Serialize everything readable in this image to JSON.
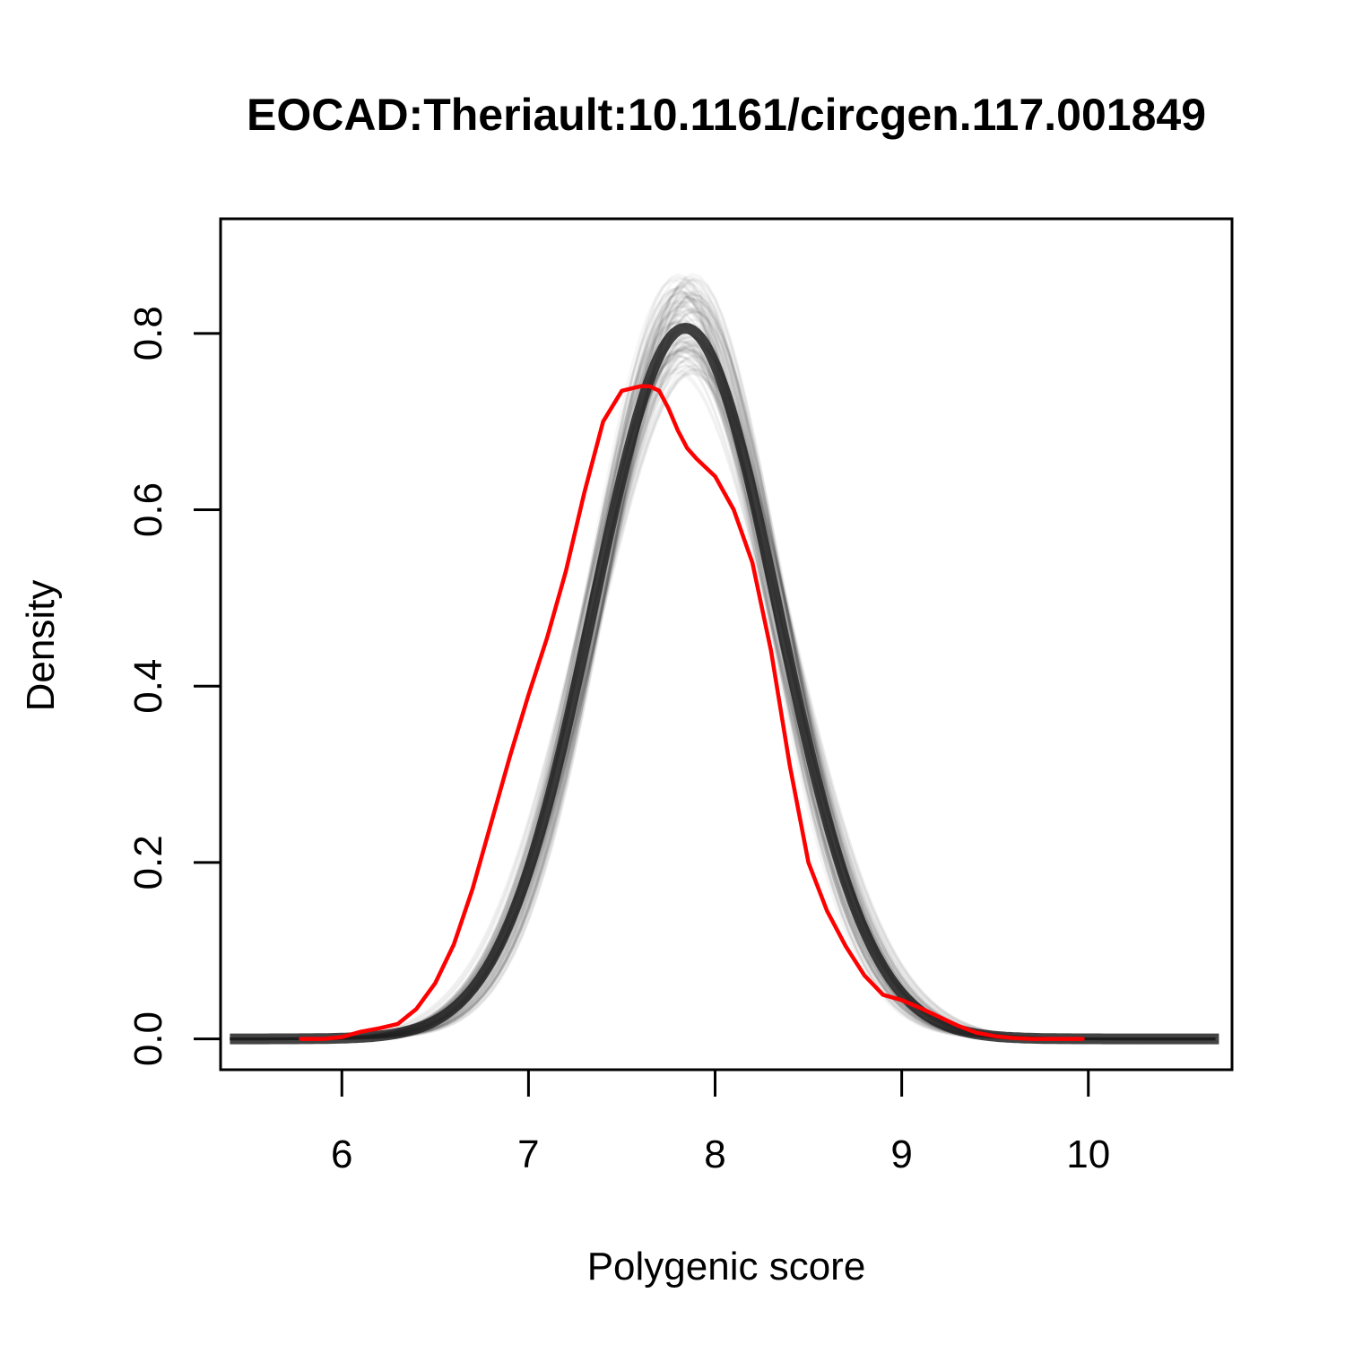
{
  "chart_data": {
    "type": "line",
    "title": "EOCAD:Theriault:10.1161/circgen.117.001849",
    "xlabel": "Polygenic score",
    "ylabel": "Density",
    "xlim": [
      5.35,
      10.77
    ],
    "ylim": [
      -0.035,
      0.93
    ],
    "xticks": [
      6,
      7,
      8,
      9,
      10
    ],
    "yticks": [
      0.0,
      0.2,
      0.4,
      0.6,
      0.8
    ],
    "xtick_labels": [
      "6",
      "7",
      "8",
      "9",
      "10"
    ],
    "ytick_labels": [
      "0.0",
      "0.2",
      "0.4",
      "0.6",
      "0.8"
    ],
    "grid": false,
    "legend": "none",
    "simulated_band": {
      "color": "#000000",
      "description_hidden": true,
      "center_mean": 7.84,
      "center_sd": 0.495,
      "mean_range": [
        7.78,
        7.9
      ],
      "sd_range": [
        0.46,
        0.53
      ],
      "x_range": [
        5.4,
        10.7
      ],
      "count": 120
    },
    "series": [
      {
        "color": "#ff0000",
        "x": [
          5.78,
          5.9,
          6.0,
          6.1,
          6.2,
          6.3,
          6.4,
          6.5,
          6.6,
          6.7,
          6.8,
          6.9,
          7.0,
          7.1,
          7.2,
          7.3,
          7.4,
          7.5,
          7.6,
          7.65,
          7.7,
          7.75,
          7.8,
          7.85,
          7.9,
          8.0,
          8.1,
          8.2,
          8.3,
          8.4,
          8.5,
          8.6,
          8.7,
          8.8,
          8.9,
          9.0,
          9.1,
          9.2,
          9.3,
          9.4,
          9.5,
          9.6,
          9.7,
          9.8,
          9.97
        ],
        "y": [
          0.0,
          0.0,
          0.002,
          0.008,
          0.012,
          0.017,
          0.034,
          0.063,
          0.107,
          0.17,
          0.245,
          0.32,
          0.39,
          0.455,
          0.53,
          0.62,
          0.7,
          0.735,
          0.74,
          0.74,
          0.735,
          0.715,
          0.69,
          0.67,
          0.658,
          0.638,
          0.6,
          0.54,
          0.44,
          0.31,
          0.2,
          0.145,
          0.105,
          0.072,
          0.05,
          0.044,
          0.035,
          0.025,
          0.015,
          0.007,
          0.003,
          0.001,
          0.0,
          0.0,
          0.0
        ]
      }
    ]
  }
}
